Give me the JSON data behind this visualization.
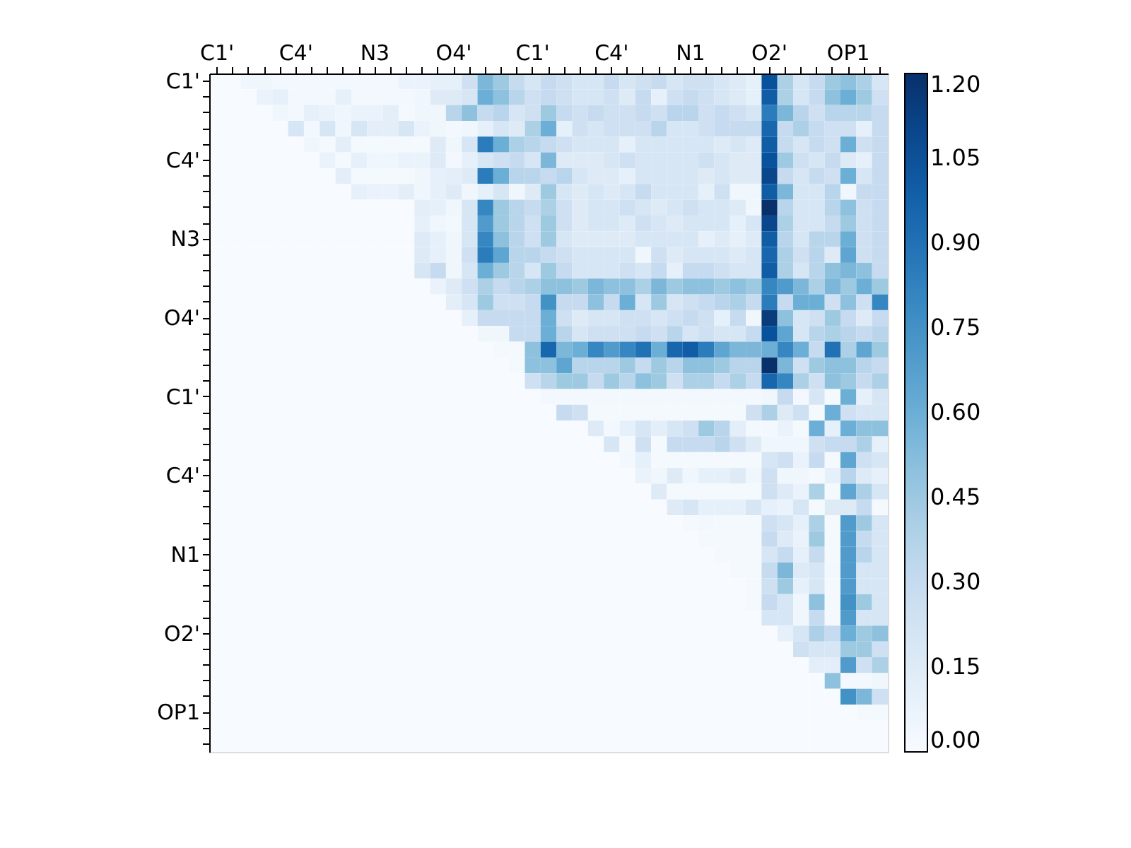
{
  "chart_data": {
    "type": "heatmap",
    "categories": [
      "C1'",
      null,
      null,
      null,
      null,
      "C4'",
      null,
      null,
      null,
      null,
      "N3",
      null,
      null,
      null,
      null,
      "O4'",
      null,
      null,
      null,
      null,
      "C1'",
      null,
      null,
      null,
      null,
      "C4'",
      null,
      null,
      null,
      null,
      "N1",
      null,
      null,
      null,
      null,
      "O2'",
      null,
      null,
      null,
      null,
      "OP1",
      null,
      null
    ],
    "y_categories": [
      "C1'",
      null,
      null,
      null,
      null,
      "C4'",
      null,
      null,
      null,
      null,
      "N3",
      null,
      null,
      null,
      null,
      "O4'",
      null,
      null,
      null,
      null,
      "C1'",
      null,
      null,
      null,
      null,
      "C4'",
      null,
      null,
      null,
      null,
      "N1",
      null,
      null,
      null,
      null,
      "O2'",
      null,
      null,
      null,
      null,
      "OP1",
      null,
      null
    ],
    "clim": [
      0,
      1.2
    ],
    "cticks": [
      {
        "value": 0,
        "label": "0.00"
      },
      {
        "value": 0.15,
        "label": "0.15"
      },
      {
        "value": 0.3,
        "label": "0.30"
      },
      {
        "value": 0.45,
        "label": "0.45"
      },
      {
        "value": 0.6,
        "label": "0.60"
      },
      {
        "value": 0.75,
        "label": "0.75"
      },
      {
        "value": 0.9,
        "label": "0.90"
      },
      {
        "value": 1.05,
        "label": "1.05"
      },
      {
        "value": 1.2,
        "label": "1.20"
      }
    ],
    "cells": [
      [
        0,
        0,
        0.05,
        0.05,
        0.03,
        0.03,
        0.03,
        0.03,
        0.03,
        0.03,
        0.03,
        0.03,
        0.08,
        0.08,
        0.1,
        0.1,
        0.25,
        0.55,
        0.45,
        0.3,
        0.2,
        0.3,
        0.25,
        0.2,
        0.2,
        0.3,
        0.2,
        0.25,
        0.3,
        0.2,
        0.25,
        0.25,
        0.2,
        0.15,
        0.1,
        1.05,
        0.4,
        0.2,
        0.3,
        0.45,
        0.5,
        0.4,
        0.2
      ],
      [
        0,
        0,
        0,
        0.08,
        0.1,
        0.03,
        0.03,
        0.03,
        0.1,
        0.03,
        0.03,
        0.03,
        0.03,
        0.05,
        0.15,
        0.15,
        0.2,
        0.6,
        0.5,
        0.35,
        0.25,
        0.3,
        0.25,
        0.2,
        0.2,
        0.25,
        0.15,
        0.3,
        0.1,
        0.25,
        0.3,
        0.25,
        0.2,
        0.15,
        0.1,
        1.0,
        0.4,
        0.2,
        0.3,
        0.5,
        0.6,
        0.45,
        0.25
      ],
      [
        0,
        0,
        0,
        0,
        0.05,
        0.03,
        0.1,
        0.08,
        0.05,
        0.08,
        0.08,
        0.12,
        0.02,
        0.05,
        0.05,
        0.35,
        0.5,
        0.3,
        0.35,
        0.2,
        0.25,
        0.45,
        0.3,
        0.25,
        0.3,
        0.25,
        0.25,
        0.3,
        0.25,
        0.35,
        0.35,
        0.25,
        0.3,
        0.25,
        0.2,
        0.85,
        0.55,
        0.35,
        0.25,
        0.35,
        0.35,
        0.35,
        0.3
      ],
      [
        0,
        0,
        0,
        0,
        0,
        0.2,
        0.03,
        0.2,
        0.05,
        0.2,
        0.12,
        0.12,
        0.2,
        0.08,
        0.05,
        0.03,
        0.05,
        0.1,
        0.2,
        0.15,
        0.4,
        0.6,
        0.1,
        0.25,
        0.2,
        0.25,
        0.25,
        0.25,
        0.35,
        0.2,
        0.2,
        0.25,
        0.3,
        0.3,
        0.3,
        0.95,
        0.3,
        0.4,
        0.3,
        0.25,
        0.25,
        0.1,
        0.3
      ],
      [
        0,
        0,
        0,
        0,
        0,
        0,
        0.05,
        0.02,
        0.12,
        0.02,
        0.02,
        0.02,
        0.02,
        0.02,
        0.15,
        0.05,
        0.2,
        0.85,
        0.6,
        0.4,
        0.35,
        0.3,
        0.25,
        0.2,
        0.2,
        0.2,
        0.1,
        0.2,
        0.2,
        0.2,
        0.2,
        0.2,
        0.15,
        0.2,
        0.15,
        1.0,
        0.3,
        0.2,
        0.3,
        0.25,
        0.6,
        0.25,
        0.3
      ],
      [
        0,
        0,
        0,
        0,
        0,
        0,
        0,
        0.08,
        0.02,
        0.1,
        0.05,
        0.05,
        0.08,
        0.08,
        0.15,
        0.03,
        0.1,
        0.2,
        0.25,
        0.3,
        0.2,
        0.55,
        0.15,
        0.15,
        0.15,
        0.2,
        0.25,
        0.2,
        0.2,
        0.2,
        0.2,
        0.25,
        0.2,
        0.15,
        0.15,
        1.05,
        0.45,
        0.25,
        0.2,
        0.3,
        0.15,
        0.1,
        0.3
      ],
      [
        0,
        0,
        0,
        0,
        0,
        0,
        0,
        0,
        0.12,
        0.02,
        0.02,
        0.02,
        0.02,
        0.05,
        0.1,
        0.12,
        0.15,
        0.85,
        0.6,
        0.35,
        0.35,
        0.3,
        0.35,
        0.2,
        0.15,
        0.15,
        0.1,
        0.2,
        0.2,
        0.2,
        0.2,
        0.15,
        0.2,
        0.15,
        0.15,
        1.1,
        0.3,
        0.2,
        0.3,
        0.25,
        0.6,
        0.2,
        0.3
      ],
      [
        0,
        0,
        0,
        0,
        0,
        0,
        0,
        0,
        0,
        0.1,
        0.08,
        0.08,
        0.12,
        0.05,
        0.1,
        0.15,
        0.05,
        0.1,
        0.2,
        0.05,
        0.15,
        0.45,
        0.2,
        0.15,
        0.2,
        0.15,
        0.2,
        0.3,
        0.2,
        0.2,
        0.2,
        0.1,
        0.25,
        0.05,
        0.05,
        1.0,
        0.55,
        0.2,
        0.2,
        0.35,
        0.05,
        0.3,
        0.3
      ],
      [
        0,
        0,
        0,
        0,
        0,
        0,
        0,
        0,
        0,
        0,
        0,
        0,
        0,
        0.12,
        0.1,
        0.05,
        0.2,
        0.8,
        0.45,
        0.35,
        0.3,
        0.4,
        0.25,
        0.15,
        0.2,
        0.2,
        0.25,
        0.2,
        0.15,
        0.2,
        0.25,
        0.2,
        0.2,
        0.15,
        0.05,
        1.2,
        0.35,
        0.2,
        0.2,
        0.35,
        0.5,
        0.25,
        0.3
      ],
      [
        0,
        0,
        0,
        0,
        0,
        0,
        0,
        0,
        0,
        0,
        0,
        0,
        0,
        0.1,
        0.05,
        0.03,
        0.2,
        0.7,
        0.45,
        0.35,
        0.25,
        0.45,
        0.25,
        0.15,
        0.2,
        0.2,
        0.15,
        0.25,
        0.2,
        0.15,
        0.2,
        0.2,
        0.2,
        0.1,
        0.2,
        1.1,
        0.4,
        0.2,
        0.2,
        0.3,
        0.45,
        0.25,
        0.3
      ],
      [
        0,
        0,
        0,
        0,
        0,
        0,
        0,
        0,
        0,
        0,
        0,
        0,
        0,
        0.15,
        0.1,
        0.05,
        0.2,
        0.8,
        0.5,
        0.35,
        0.25,
        0.45,
        0.2,
        0.15,
        0.15,
        0.15,
        0.15,
        0.2,
        0.2,
        0.2,
        0.2,
        0.1,
        0.15,
        0.1,
        0.15,
        1.0,
        0.35,
        0.2,
        0.35,
        0.35,
        0.6,
        0.25,
        0.3
      ],
      [
        0,
        0,
        0,
        0,
        0,
        0,
        0,
        0,
        0,
        0,
        0,
        0,
        0,
        0.15,
        0.1,
        0.05,
        0.25,
        0.85,
        0.65,
        0.35,
        0.35,
        0.3,
        0.25,
        0.2,
        0.2,
        0.2,
        0.2,
        0.05,
        0.25,
        0.15,
        0.2,
        0.2,
        0.2,
        0.15,
        0.2,
        0.95,
        0.4,
        0.25,
        0.35,
        0.15,
        0.65,
        0.25,
        0.3
      ],
      [
        0,
        0,
        0,
        0,
        0,
        0,
        0,
        0,
        0,
        0,
        0,
        0,
        0,
        0.2,
        0.3,
        0.05,
        0.2,
        0.6,
        0.45,
        0.35,
        0.2,
        0.45,
        0.3,
        0.2,
        0.2,
        0.2,
        0.25,
        0.2,
        0.3,
        0.1,
        0.3,
        0.3,
        0.25,
        0.2,
        0.2,
        1.0,
        0.4,
        0.2,
        0.35,
        0.5,
        0.55,
        0.5,
        0.3
      ],
      [
        0,
        0,
        0,
        0,
        0,
        0,
        0,
        0,
        0,
        0,
        0,
        0,
        0,
        0,
        0.08,
        0.15,
        0.25,
        0.4,
        0.3,
        0.35,
        0.4,
        0.5,
        0.5,
        0.45,
        0.55,
        0.5,
        0.5,
        0.4,
        0.55,
        0.45,
        0.5,
        0.5,
        0.45,
        0.5,
        0.45,
        0.8,
        0.7,
        0.55,
        0.4,
        0.55,
        0.45,
        0.6,
        0.45
      ],
      [
        0,
        0,
        0,
        0,
        0,
        0,
        0,
        0,
        0,
        0,
        0,
        0,
        0,
        0,
        0,
        0.12,
        0.2,
        0.45,
        0.25,
        0.25,
        0.3,
        0.75,
        0.3,
        0.3,
        0.5,
        0.3,
        0.6,
        0.2,
        0.45,
        0.2,
        0.25,
        0.3,
        0.35,
        0.4,
        0.3,
        0.85,
        0.3,
        0.6,
        0.6,
        0.25,
        0.5,
        0.25,
        0.8
      ],
      [
        0,
        0,
        0,
        0,
        0,
        0,
        0,
        0,
        0,
        0,
        0,
        0,
        0,
        0,
        0,
        0,
        0.1,
        0.3,
        0.3,
        0.3,
        0.3,
        0.6,
        0.25,
        0.15,
        0.2,
        0.2,
        0.25,
        0.25,
        0.2,
        0.25,
        0.3,
        0.25,
        0.1,
        0.3,
        0.05,
        1.15,
        0.5,
        0.2,
        0.25,
        0.45,
        0.3,
        0.15,
        0.3
      ],
      [
        0,
        0,
        0,
        0,
        0,
        0,
        0,
        0,
        0,
        0,
        0,
        0,
        0,
        0,
        0,
        0,
        0,
        0.05,
        0.05,
        0.3,
        0.3,
        0.6,
        0.35,
        0.2,
        0.25,
        0.25,
        0.25,
        0.3,
        0.25,
        0.35,
        0.2,
        0.25,
        0.2,
        0.2,
        0.3,
        1.05,
        0.65,
        0.2,
        0.35,
        0.4,
        0.35,
        0.3,
        0.35
      ],
      [
        0,
        0,
        0,
        0,
        0,
        0,
        0,
        0,
        0,
        0,
        0,
        0,
        0,
        0,
        0,
        0,
        0,
        0,
        0.02,
        0.02,
        0.5,
        0.95,
        0.55,
        0.6,
        0.8,
        0.7,
        0.8,
        0.9,
        0.6,
        0.95,
        1.0,
        0.85,
        0.65,
        0.55,
        0.55,
        0.6,
        0.8,
        0.6,
        0.3,
        0.9,
        0.4,
        0.65,
        0.45
      ],
      [
        0,
        0,
        0,
        0,
        0,
        0,
        0,
        0,
        0,
        0,
        0,
        0,
        0,
        0,
        0,
        0,
        0,
        0,
        0,
        0.02,
        0.5,
        0.5,
        0.65,
        0.35,
        0.35,
        0.35,
        0.45,
        0.3,
        0.45,
        0.35,
        0.5,
        0.5,
        0.45,
        0.35,
        0.35,
        1.2,
        0.55,
        0.25,
        0.45,
        0.5,
        0.5,
        0.35,
        0.3
      ],
      [
        0,
        0,
        0,
        0,
        0,
        0,
        0,
        0,
        0,
        0,
        0,
        0,
        0,
        0,
        0,
        0,
        0,
        0,
        0,
        0,
        0.25,
        0.35,
        0.45,
        0.45,
        0.3,
        0.45,
        0.35,
        0.5,
        0.45,
        0.25,
        0.4,
        0.4,
        0.3,
        0.4,
        0.3,
        0.95,
        0.8,
        0.4,
        0.25,
        0.5,
        0.45,
        0.3,
        0.4
      ],
      [
        0,
        0,
        0,
        0,
        0,
        0,
        0,
        0,
        0,
        0,
        0,
        0,
        0,
        0,
        0,
        0,
        0,
        0,
        0,
        0,
        0,
        0.03,
        0.03,
        0.03,
        0.03,
        0.03,
        0.03,
        0.03,
        0.03,
        0.03,
        0.03,
        0.03,
        0.03,
        0.03,
        0.03,
        0.05,
        0.3,
        0.03,
        0.2,
        0.02,
        0.6,
        0.1,
        0.2
      ],
      [
        0,
        0,
        0,
        0,
        0,
        0,
        0,
        0,
        0,
        0,
        0,
        0,
        0,
        0,
        0,
        0,
        0,
        0,
        0,
        0,
        0,
        0,
        0.3,
        0.25,
        0.02,
        0.02,
        0.02,
        0.02,
        0.02,
        0.02,
        0.02,
        0.02,
        0.02,
        0.02,
        0.25,
        0.4,
        0.15,
        0.25,
        0.02,
        0.6,
        0.25,
        0.2,
        0.2
      ],
      [
        0,
        0,
        0,
        0,
        0,
        0,
        0,
        0,
        0,
        0,
        0,
        0,
        0,
        0,
        0,
        0,
        0,
        0,
        0,
        0,
        0,
        0,
        0,
        0,
        0.15,
        0.03,
        0.1,
        0.2,
        0.12,
        0.2,
        0.25,
        0.45,
        0.35,
        0.12,
        0.03,
        0.03,
        0.08,
        0.02,
        0.6,
        0.1,
        0.6,
        0.5,
        0.5
      ],
      [
        0,
        0,
        0,
        0,
        0,
        0,
        0,
        0,
        0,
        0,
        0,
        0,
        0,
        0,
        0,
        0,
        0,
        0,
        0,
        0,
        0,
        0,
        0,
        0,
        0,
        0.2,
        0.02,
        0.25,
        0.02,
        0.3,
        0.3,
        0.3,
        0.35,
        0.25,
        0.15,
        0.05,
        0.05,
        0.05,
        0.25,
        0.3,
        0.3,
        0.4,
        0.1
      ],
      [
        0,
        0,
        0,
        0,
        0,
        0,
        0,
        0,
        0,
        0,
        0,
        0,
        0,
        0,
        0,
        0,
        0,
        0,
        0,
        0,
        0,
        0,
        0,
        0,
        0,
        0,
        0.03,
        0.1,
        0.02,
        0.02,
        0.02,
        0.02,
        0.02,
        0.02,
        0.02,
        0.2,
        0.25,
        0.08,
        0.3,
        0.02,
        0.65,
        0.25,
        0.2
      ],
      [
        0,
        0,
        0,
        0,
        0,
        0,
        0,
        0,
        0,
        0,
        0,
        0,
        0,
        0,
        0,
        0,
        0,
        0,
        0,
        0,
        0,
        0,
        0,
        0,
        0,
        0,
        0,
        0.08,
        0.05,
        0.15,
        0.05,
        0.1,
        0.1,
        0.15,
        0.05,
        0.25,
        0.05,
        0.05,
        0.02,
        0.1,
        0.35,
        0.15,
        0.1
      ],
      [
        0,
        0,
        0,
        0,
        0,
        0,
        0,
        0,
        0,
        0,
        0,
        0,
        0,
        0,
        0,
        0,
        0,
        0,
        0,
        0,
        0,
        0,
        0,
        0,
        0,
        0,
        0,
        0,
        0.15,
        0.02,
        0.02,
        0.02,
        0.02,
        0.02,
        0.02,
        0.25,
        0.15,
        0.08,
        0.4,
        0.02,
        0.65,
        0.4,
        0.2
      ],
      [
        0,
        0,
        0,
        0,
        0,
        0,
        0,
        0,
        0,
        0,
        0,
        0,
        0,
        0,
        0,
        0,
        0,
        0,
        0,
        0,
        0,
        0,
        0,
        0,
        0,
        0,
        0,
        0,
        0,
        0.15,
        0.2,
        0.1,
        0.1,
        0.1,
        0.2,
        0.1,
        0.08,
        0.2,
        0.02,
        0.15,
        0.15,
        0.3,
        0.02
      ],
      [
        0,
        0,
        0,
        0,
        0,
        0,
        0,
        0,
        0,
        0,
        0,
        0,
        0,
        0,
        0,
        0,
        0,
        0,
        0,
        0,
        0,
        0,
        0,
        0,
        0,
        0,
        0,
        0,
        0,
        0,
        0.02,
        0.03,
        0.02,
        0.02,
        0.02,
        0.25,
        0.2,
        0.1,
        0.4,
        0.02,
        0.7,
        0.45,
        0.2
      ],
      [
        0,
        0,
        0,
        0,
        0,
        0,
        0,
        0,
        0,
        0,
        0,
        0,
        0,
        0,
        0,
        0,
        0,
        0,
        0,
        0,
        0,
        0,
        0,
        0,
        0,
        0,
        0,
        0,
        0,
        0,
        0,
        0.02,
        0.02,
        0.02,
        0.02,
        0.3,
        0.15,
        0.08,
        0.45,
        0.02,
        0.7,
        0.3,
        0.2
      ],
      [
        0,
        0,
        0,
        0,
        0,
        0,
        0,
        0,
        0,
        0,
        0,
        0,
        0,
        0,
        0,
        0,
        0,
        0,
        0,
        0,
        0,
        0,
        0,
        0,
        0,
        0,
        0,
        0,
        0,
        0,
        0,
        0,
        0.02,
        0.02,
        0.02,
        0.2,
        0.3,
        0.1,
        0.3,
        0.02,
        0.7,
        0.35,
        0.2
      ],
      [
        0,
        0,
        0,
        0,
        0,
        0,
        0,
        0,
        0,
        0,
        0,
        0,
        0,
        0,
        0,
        0,
        0,
        0,
        0,
        0,
        0,
        0,
        0,
        0,
        0,
        0,
        0,
        0,
        0,
        0,
        0,
        0,
        0,
        0.02,
        0.02,
        0.3,
        0.55,
        0.15,
        0.2,
        0.03,
        0.7,
        0.2,
        0.2
      ],
      [
        0,
        0,
        0,
        0,
        0,
        0,
        0,
        0,
        0,
        0,
        0,
        0,
        0,
        0,
        0,
        0,
        0,
        0,
        0,
        0,
        0,
        0,
        0,
        0,
        0,
        0,
        0,
        0,
        0,
        0,
        0,
        0,
        0,
        0,
        0.02,
        0.25,
        0.45,
        0.1,
        0.2,
        0.02,
        0.7,
        0.2,
        0.2
      ],
      [
        0,
        0,
        0,
        0,
        0,
        0,
        0,
        0,
        0,
        0,
        0,
        0,
        0,
        0,
        0,
        0,
        0,
        0,
        0,
        0,
        0,
        0,
        0,
        0,
        0,
        0,
        0,
        0,
        0,
        0,
        0,
        0,
        0,
        0,
        0.02,
        0.3,
        0.2,
        0.05,
        0.5,
        0.02,
        0.75,
        0.45,
        0.2
      ],
      [
        0,
        0,
        0,
        0,
        0,
        0,
        0,
        0,
        0,
        0,
        0,
        0,
        0,
        0,
        0,
        0,
        0,
        0,
        0,
        0,
        0,
        0,
        0,
        0,
        0,
        0,
        0,
        0,
        0,
        0,
        0,
        0,
        0,
        0,
        0,
        0.2,
        0.2,
        0.05,
        0.3,
        0.02,
        0.7,
        0.2,
        0.2
      ],
      [
        0,
        0,
        0,
        0,
        0,
        0,
        0,
        0,
        0,
        0,
        0,
        0,
        0,
        0,
        0,
        0,
        0,
        0,
        0,
        0,
        0,
        0,
        0,
        0,
        0,
        0,
        0,
        0,
        0,
        0,
        0,
        0,
        0,
        0,
        0,
        0,
        0.1,
        0.2,
        0.4,
        0.3,
        0.6,
        0.45,
        0.5
      ],
      [
        0,
        0,
        0,
        0,
        0,
        0,
        0,
        0,
        0,
        0,
        0,
        0,
        0,
        0,
        0,
        0,
        0,
        0,
        0,
        0,
        0,
        0,
        0,
        0,
        0,
        0,
        0,
        0,
        0,
        0,
        0,
        0,
        0,
        0,
        0,
        0,
        0,
        0.25,
        0.2,
        0.2,
        0.45,
        0.45,
        0.25
      ],
      [
        0,
        0,
        0,
        0,
        0,
        0,
        0,
        0,
        0,
        0,
        0,
        0,
        0,
        0,
        0,
        0,
        0,
        0,
        0,
        0,
        0,
        0,
        0,
        0,
        0,
        0,
        0,
        0,
        0,
        0,
        0,
        0,
        0,
        0,
        0,
        0,
        0,
        0,
        0.12,
        0.12,
        0.7,
        0.25,
        0.4
      ],
      [
        0,
        0,
        0,
        0,
        0,
        0,
        0,
        0,
        0,
        0,
        0,
        0,
        0,
        0,
        0,
        0,
        0,
        0,
        0,
        0,
        0,
        0,
        0,
        0,
        0,
        0,
        0,
        0,
        0,
        0,
        0,
        0,
        0,
        0,
        0,
        0,
        0,
        0,
        0,
        0.5,
        0.03,
        0.03,
        0.05
      ],
      [
        0,
        0,
        0,
        0,
        0,
        0,
        0,
        0,
        0,
        0,
        0,
        0,
        0,
        0,
        0,
        0,
        0,
        0,
        0,
        0,
        0,
        0,
        0,
        0,
        0,
        0,
        0,
        0,
        0,
        0,
        0,
        0,
        0,
        0,
        0,
        0,
        0,
        0,
        0,
        0,
        0.75,
        0.55,
        0.25
      ],
      [
        0,
        0,
        0,
        0,
        0,
        0,
        0,
        0,
        0,
        0,
        0,
        0,
        0,
        0,
        0,
        0,
        0,
        0,
        0,
        0,
        0,
        0,
        0,
        0,
        0,
        0,
        0,
        0,
        0,
        0,
        0,
        0,
        0,
        0,
        0,
        0,
        0,
        0,
        0,
        0,
        0,
        0.02,
        0.02
      ],
      [
        0,
        0,
        0,
        0,
        0,
        0,
        0,
        0,
        0,
        0,
        0,
        0,
        0,
        0,
        0,
        0,
        0,
        0,
        0,
        0,
        0,
        0,
        0,
        0,
        0,
        0,
        0,
        0,
        0,
        0,
        0,
        0,
        0,
        0,
        0,
        0,
        0,
        0,
        0,
        0,
        0,
        0,
        0
      ],
      [
        0,
        0,
        0,
        0,
        0,
        0,
        0,
        0,
        0,
        0,
        0,
        0,
        0,
        0,
        0,
        0,
        0,
        0,
        0,
        0,
        0,
        0,
        0,
        0,
        0,
        0,
        0,
        0,
        0,
        0,
        0,
        0,
        0,
        0,
        0,
        0,
        0,
        0,
        0,
        0,
        0,
        0,
        0
      ]
    ]
  }
}
